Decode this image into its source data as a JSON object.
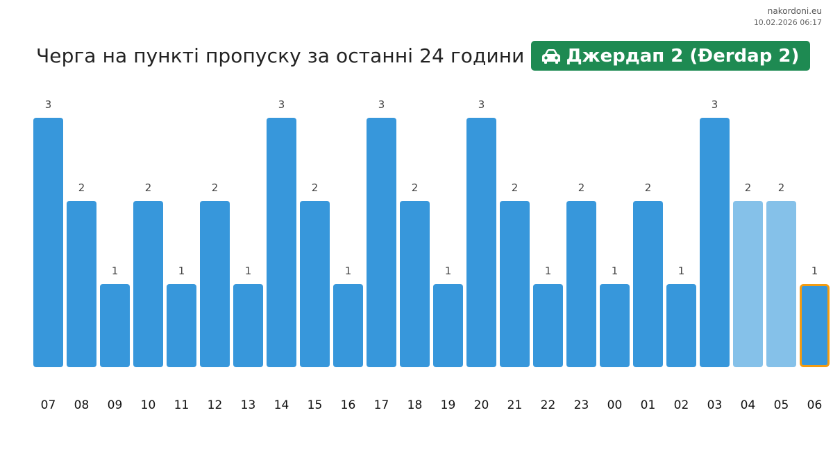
{
  "header": {
    "site": "nakordoni.eu",
    "timestamp": "10.02.2026 06:17",
    "title": "Черга на пункті пропуску за останні 24 години",
    "badge_label": "Джердап 2 (Đerdap 2)",
    "badge_icon": "car-icon"
  },
  "colors": {
    "bar": "#3797db",
    "bar_light": "#85c1e9",
    "highlight": "#f39c12",
    "badge": "#1e8a52"
  },
  "chart_data": {
    "type": "bar",
    "categories": [
      "07",
      "08",
      "09",
      "10",
      "11",
      "12",
      "13",
      "14",
      "15",
      "16",
      "17",
      "18",
      "19",
      "20",
      "21",
      "22",
      "23",
      "00",
      "01",
      "02",
      "03",
      "04",
      "05",
      "06"
    ],
    "values": [
      3,
      2,
      1,
      2,
      1,
      2,
      1,
      3,
      2,
      1,
      3,
      2,
      1,
      3,
      2,
      1,
      2,
      1,
      2,
      1,
      3,
      2,
      2,
      1
    ],
    "light_indices": [
      21,
      22
    ],
    "highlight_index": 23,
    "ylim": [
      0,
      3
    ],
    "grid": false,
    "legend": "none",
    "xlabel": "",
    "ylabel": ""
  }
}
